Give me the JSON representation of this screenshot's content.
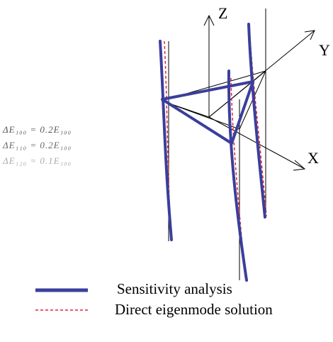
{
  "axes": {
    "z_label": "Z",
    "y_label": "Y",
    "x_label": "X"
  },
  "equations": [
    {
      "text": "ΔE₁₀₀ = 0.2E₁₀₀"
    },
    {
      "text": "ΔE₁₁₀ = 0.2E₁₀₀"
    },
    {
      "text": "ΔE₁₂₀ = 0.1E₁₀₀"
    }
  ],
  "legend": {
    "items": [
      {
        "label": "Sensitivity analysis",
        "color": "#3a3f9c",
        "style": "solid"
      },
      {
        "label": "Direct eigenmode solution",
        "color": "#e0243a",
        "style": "dashed"
      }
    ]
  },
  "colors": {
    "structure": "#3a3f9c",
    "reference": "#e0243a",
    "wire": "#000000"
  }
}
